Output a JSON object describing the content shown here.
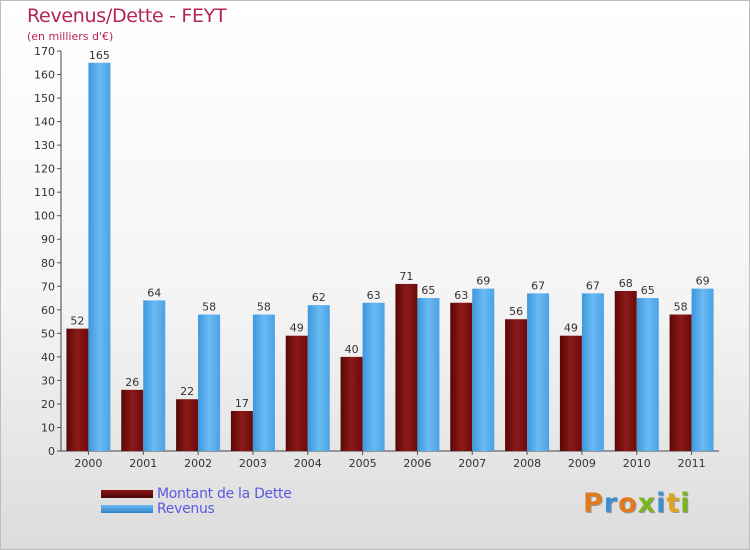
{
  "title": "Revenus/Dette - FEYT",
  "subtitle": "(en milliers d'€)",
  "colors": {
    "dette": "#6b0a0a",
    "revenus": "#4aa3e6",
    "title": "#b4235a",
    "legend_text": "#5a5ae0"
  },
  "legend": {
    "items": [
      {
        "label": "Montant de la Dette",
        "color": "#6b0a0a"
      },
      {
        "label": "Revenus",
        "color": "#4aa3e6"
      }
    ]
  },
  "logo": {
    "text": "Proxiti"
  },
  "chart_data": {
    "type": "bar",
    "title": "Revenus/Dette - FEYT",
    "subtitle": "(en milliers d'€)",
    "categories": [
      "2000",
      "2001",
      "2002",
      "2003",
      "2004",
      "2005",
      "2006",
      "2007",
      "2008",
      "2009",
      "2010",
      "2011"
    ],
    "series": [
      {
        "name": "Montant de la Dette",
        "values": [
          52,
          26,
          22,
          17,
          49,
          40,
          71,
          63,
          56,
          49,
          68,
          58
        ]
      },
      {
        "name": "Revenus",
        "values": [
          165,
          64,
          58,
          58,
          62,
          63,
          65,
          69,
          67,
          67,
          65,
          69
        ]
      }
    ],
    "ylim": [
      0,
      170
    ],
    "ytick_step": 10,
    "grid": false,
    "legend_position": "bottom-left"
  }
}
